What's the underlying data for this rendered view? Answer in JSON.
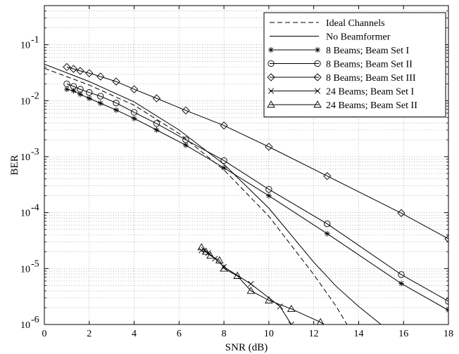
{
  "chart_data": {
    "type": "line",
    "title": "",
    "xlabel": "SNR (dB)",
    "ylabel": "BER",
    "xlim": [
      0,
      18
    ],
    "ylim": [
      1e-06,
      0.5
    ],
    "yscale": "log",
    "grid": true,
    "legend_position": "top-right",
    "x_ticks": [
      "0",
      "2",
      "4",
      "6",
      "8",
      "10",
      "12",
      "14",
      "16",
      "18"
    ],
    "y_ticks": [
      {
        "base": "10",
        "exp": "-6"
      },
      {
        "base": "10",
        "exp": "-5"
      },
      {
        "base": "10",
        "exp": "-4"
      },
      {
        "base": "10",
        "exp": "-3"
      },
      {
        "base": "10",
        "exp": "-2"
      },
      {
        "base": "10",
        "exp": "-1"
      }
    ],
    "series": [
      {
        "name": "Ideal Channels",
        "line": "dashed",
        "marker": "none",
        "x": [
          0,
          2,
          4,
          6,
          8,
          10,
          12,
          13,
          14,
          14.6
        ],
        "y": [
          0.038,
          0.019,
          0.0083,
          0.0026,
          0.00058,
          8.6e-05,
          7.8e-06,
          2.1e-06,
          4.5e-07,
          1e-06
        ]
      },
      {
        "name": "No Beamformer",
        "line": "solid",
        "marker": "none",
        "x": [
          0,
          2,
          4,
          6,
          8,
          10,
          12,
          13,
          14,
          15
        ],
        "y": [
          0.045,
          0.022,
          0.0095,
          0.003,
          0.00073,
          0.00012,
          1.3e-05,
          4.8e-06,
          2.1e-06,
          1e-06
        ]
      },
      {
        "name": "8 Beams; Beam Set I",
        "line": "solid",
        "marker": "star",
        "x": [
          1,
          1.3,
          1.6,
          2,
          2.5,
          3.2,
          4,
          5,
          6.3,
          8,
          10,
          12.6,
          15.9,
          18
        ],
        "y": [
          0.016,
          0.015,
          0.013,
          0.011,
          0.009,
          0.0068,
          0.0048,
          0.003,
          0.0016,
          0.00063,
          0.0002,
          4.2e-05,
          5.4e-06,
          1.8e-06
        ]
      },
      {
        "name": "8 Beams; Beam Set II",
        "line": "solid",
        "marker": "circle",
        "x": [
          1,
          1.3,
          1.6,
          2,
          2.5,
          3.2,
          4,
          5,
          6.3,
          8,
          10,
          12.6,
          15.9,
          18
        ],
        "y": [
          0.02,
          0.018,
          0.016,
          0.014,
          0.012,
          0.0091,
          0.0062,
          0.0039,
          0.002,
          0.00085,
          0.00026,
          6.3e-05,
          7.8e-06,
          2.6e-06
        ]
      },
      {
        "name": "8 Beams; Beam Set III",
        "line": "solid",
        "marker": "diamond",
        "x": [
          1,
          1.3,
          1.6,
          2,
          2.5,
          3.2,
          4,
          5,
          6.3,
          8,
          10,
          12.6,
          15.9,
          18
        ],
        "y": [
          0.04,
          0.037,
          0.034,
          0.031,
          0.027,
          0.022,
          0.016,
          0.011,
          0.0067,
          0.0036,
          0.0015,
          0.00045,
          9.8e-05,
          3.4e-05
        ]
      },
      {
        "name": "24 Beams; Beam Set I",
        "line": "solid",
        "marker": "x",
        "x": [
          7,
          7.3,
          7.6,
          8,
          9.2,
          10.5,
          11
        ],
        "y": [
          2.1e-05,
          1.9e-05,
          1.5e-05,
          1.07e-05,
          5.3e-06,
          2.1e-06,
          1e-06
        ]
      },
      {
        "name": "24 Beams; Beam Set II",
        "line": "solid",
        "marker": "triangle",
        "x": [
          7,
          7.2,
          7.4,
          7.8,
          8,
          8.6,
          9.2,
          10,
          11,
          12.3,
          13
        ],
        "y": [
          2.4e-05,
          2e-05,
          1.7e-05,
          1.4e-05,
          1e-05,
          7.4e-06,
          4e-06,
          2.7e-06,
          1.9e-06,
          1.1e-06,
          7e-07
        ]
      }
    ]
  }
}
